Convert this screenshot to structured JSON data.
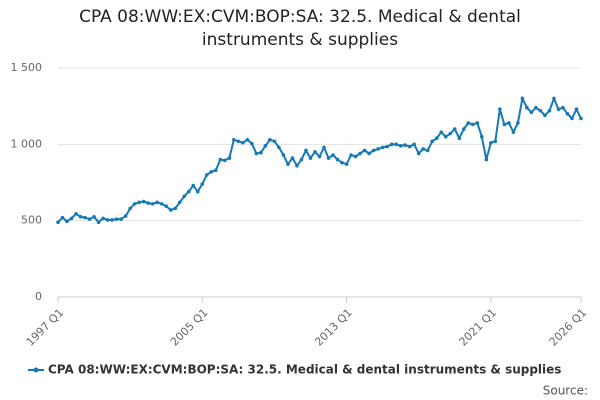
{
  "chart_data": {
    "type": "line",
    "title": "CPA 08:WW:EX:CVM:BOP:SA: 32.5. Medical & dental instruments & supplies",
    "source": "Source:",
    "categories": [
      "1997 Q1",
      null,
      null,
      null,
      null,
      null,
      null,
      null,
      null,
      null,
      null,
      null,
      null,
      null,
      null,
      null,
      null,
      null,
      null,
      null,
      null,
      null,
      null,
      null,
      null,
      null,
      null,
      null,
      null,
      null,
      null,
      null,
      "2005 Q1",
      null,
      null,
      null,
      null,
      null,
      null,
      null,
      null,
      null,
      null,
      null,
      null,
      null,
      null,
      null,
      null,
      null,
      null,
      null,
      null,
      null,
      null,
      null,
      null,
      null,
      null,
      null,
      null,
      null,
      null,
      null,
      "2013 Q1",
      null,
      null,
      null,
      null,
      null,
      null,
      null,
      null,
      null,
      null,
      null,
      null,
      null,
      null,
      null,
      null,
      null,
      null,
      null,
      null,
      null,
      null,
      null,
      null,
      null,
      null,
      null,
      null,
      null,
      null,
      null,
      "2021 Q1",
      null,
      null,
      null,
      null,
      null,
      null,
      null,
      null,
      null,
      null,
      null,
      null,
      null,
      null,
      null,
      null,
      null,
      null,
      null,
      "2026 Q1"
    ],
    "series": [
      {
        "name": "CPA 08:WW:EX:CVM:BOP:SA: 32.5. Medical & dental instruments & supplies",
        "color": "#1579b8",
        "values": [
          490,
          520,
          495,
          515,
          545,
          525,
          520,
          510,
          525,
          490,
          515,
          505,
          505,
          510,
          510,
          530,
          580,
          610,
          620,
          625,
          615,
          610,
          620,
          610,
          595,
          570,
          580,
          620,
          660,
          690,
          730,
          690,
          740,
          800,
          820,
          830,
          900,
          895,
          910,
          1030,
          1020,
          1010,
          1030,
          1005,
          940,
          945,
          990,
          1030,
          1020,
          980,
          930,
          870,
          910,
          860,
          900,
          960,
          910,
          950,
          920,
          980,
          910,
          930,
          900,
          880,
          870,
          930,
          920,
          940,
          960,
          940,
          960,
          970,
          980,
          985,
          1000,
          1000,
          990,
          995,
          985,
          1000,
          940,
          970,
          960,
          1020,
          1040,
          1080,
          1050,
          1070,
          1100,
          1040,
          1100,
          1140,
          1130,
          1140,
          1050,
          900,
          1010,
          1020,
          1230,
          1130,
          1140,
          1080,
          1140,
          1300,
          1240,
          1210,
          1240,
          1220,
          1190,
          1220,
          1300,
          1230,
          1240,
          1200,
          1170,
          1230,
          1170
        ]
      }
    ],
    "ylim": [
      0,
      1500
    ],
    "yticks": [
      0,
      500,
      {
        "value": 1000,
        "label": "1 000"
      },
      {
        "value": 1500,
        "label": "1 500"
      }
    ],
    "grid": true,
    "legend": "bottom"
  }
}
